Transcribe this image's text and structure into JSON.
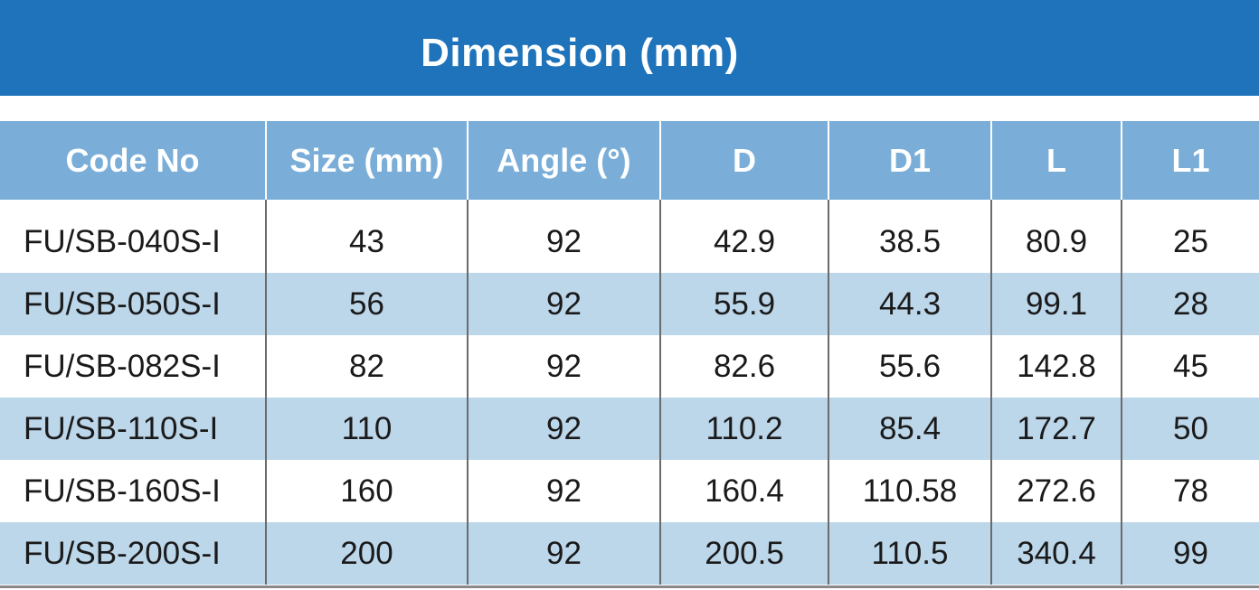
{
  "title": "Dimension (mm)",
  "colors": {
    "banner": "#1e73bb",
    "header_row": "#7aaed8",
    "stripe_row": "#bcd6ea",
    "divider": "#6b6b6b"
  },
  "table": {
    "columns": [
      "Code No",
      "Size (mm)",
      "Angle (°)",
      "D",
      "D1",
      "L",
      "L1"
    ],
    "rows": [
      [
        "FU/SB-040S-I",
        "43",
        "92",
        "42.9",
        "38.5",
        "80.9",
        "25"
      ],
      [
        "FU/SB-050S-I",
        "56",
        "92",
        "55.9",
        "44.3",
        "99.1",
        "28"
      ],
      [
        "FU/SB-082S-I",
        "82",
        "92",
        "82.6",
        "55.6",
        "142.8",
        "45"
      ],
      [
        "FU/SB-110S-I",
        "110",
        "92",
        "110.2",
        "85.4",
        "172.7",
        "50"
      ],
      [
        "FU/SB-160S-I",
        "160",
        "92",
        "160.4",
        "110.58",
        "272.6",
        "78"
      ],
      [
        "FU/SB-200S-I",
        "200",
        "92",
        "200.5",
        "110.5",
        "340.4",
        "99"
      ]
    ]
  }
}
